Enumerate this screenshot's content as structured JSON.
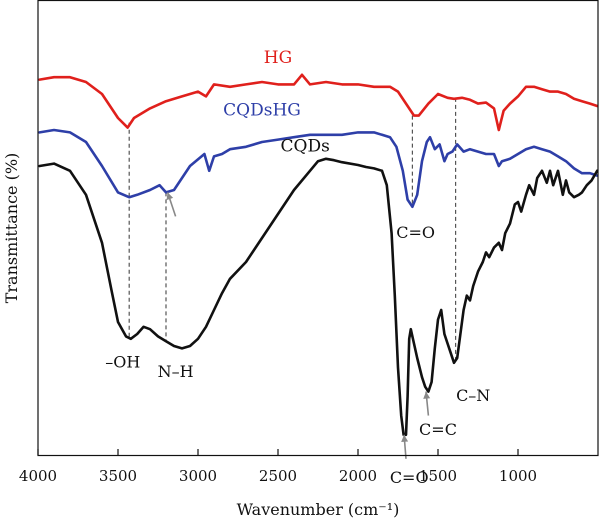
{
  "chart_data": {
    "type": "line",
    "xlabel": "Wavenumber (cm⁻¹)",
    "ylabel": "Transmittance (%)",
    "xlim": [
      4000,
      500
    ],
    "x_reversed": true,
    "y_ticks_shown": false,
    "grid": false,
    "x_ticks": [
      4000,
      3500,
      3000,
      2500,
      2000,
      1500,
      1000
    ],
    "series": [
      {
        "name": "HG",
        "color": "#e0201c",
        "points": [
          [
            3990,
            0.78
          ],
          [
            3900,
            0.785
          ],
          [
            3800,
            0.785
          ],
          [
            3700,
            0.775
          ],
          [
            3600,
            0.75
          ],
          [
            3500,
            0.7
          ],
          [
            3440,
            0.68
          ],
          [
            3400,
            0.7
          ],
          [
            3300,
            0.72
          ],
          [
            3200,
            0.735
          ],
          [
            3100,
            0.745
          ],
          [
            3000,
            0.755
          ],
          [
            2950,
            0.745
          ],
          [
            2900,
            0.77
          ],
          [
            2800,
            0.765
          ],
          [
            2700,
            0.77
          ],
          [
            2600,
            0.775
          ],
          [
            2500,
            0.77
          ],
          [
            2400,
            0.77
          ],
          [
            2350,
            0.79
          ],
          [
            2300,
            0.77
          ],
          [
            2200,
            0.775
          ],
          [
            2100,
            0.77
          ],
          [
            2000,
            0.77
          ],
          [
            1900,
            0.765
          ],
          [
            1800,
            0.765
          ],
          [
            1750,
            0.755
          ],
          [
            1700,
            0.73
          ],
          [
            1650,
            0.705
          ],
          [
            1620,
            0.705
          ],
          [
            1560,
            0.73
          ],
          [
            1500,
            0.75
          ],
          [
            1440,
            0.742
          ],
          [
            1400,
            0.74
          ],
          [
            1350,
            0.742
          ],
          [
            1300,
            0.738
          ],
          [
            1250,
            0.73
          ],
          [
            1200,
            0.732
          ],
          [
            1150,
            0.72
          ],
          [
            1120,
            0.675
          ],
          [
            1090,
            0.715
          ],
          [
            1050,
            0.73
          ],
          [
            1000,
            0.745
          ],
          [
            950,
            0.765
          ],
          [
            900,
            0.765
          ],
          [
            850,
            0.76
          ],
          [
            800,
            0.755
          ],
          [
            750,
            0.755
          ],
          [
            700,
            0.75
          ],
          [
            650,
            0.74
          ],
          [
            600,
            0.735
          ],
          [
            550,
            0.73
          ],
          [
            505,
            0.725
          ]
        ]
      },
      {
        "name": "CQDsHG",
        "color": "#2e3fa8",
        "points": [
          [
            3990,
            0.67
          ],
          [
            3900,
            0.675
          ],
          [
            3800,
            0.67
          ],
          [
            3700,
            0.65
          ],
          [
            3600,
            0.6
          ],
          [
            3500,
            0.545
          ],
          [
            3430,
            0.535
          ],
          [
            3380,
            0.54
          ],
          [
            3300,
            0.55
          ],
          [
            3240,
            0.56
          ],
          [
            3200,
            0.545
          ],
          [
            3150,
            0.55
          ],
          [
            3050,
            0.6
          ],
          [
            2960,
            0.625
          ],
          [
            2930,
            0.59
          ],
          [
            2900,
            0.62
          ],
          [
            2850,
            0.625
          ],
          [
            2800,
            0.635
          ],
          [
            2700,
            0.64
          ],
          [
            2600,
            0.65
          ],
          [
            2500,
            0.655
          ],
          [
            2400,
            0.66
          ],
          [
            2300,
            0.665
          ],
          [
            2200,
            0.665
          ],
          [
            2100,
            0.665
          ],
          [
            2000,
            0.67
          ],
          [
            1900,
            0.67
          ],
          [
            1850,
            0.665
          ],
          [
            1800,
            0.66
          ],
          [
            1760,
            0.64
          ],
          [
            1720,
            0.59
          ],
          [
            1690,
            0.53
          ],
          [
            1660,
            0.515
          ],
          [
            1630,
            0.54
          ],
          [
            1600,
            0.61
          ],
          [
            1570,
            0.65
          ],
          [
            1550,
            0.66
          ],
          [
            1520,
            0.635
          ],
          [
            1490,
            0.645
          ],
          [
            1460,
            0.61
          ],
          [
            1440,
            0.625
          ],
          [
            1410,
            0.63
          ],
          [
            1380,
            0.645
          ],
          [
            1340,
            0.63
          ],
          [
            1300,
            0.635
          ],
          [
            1250,
            0.63
          ],
          [
            1200,
            0.625
          ],
          [
            1150,
            0.625
          ],
          [
            1120,
            0.6
          ],
          [
            1100,
            0.61
          ],
          [
            1050,
            0.615
          ],
          [
            1000,
            0.625
          ],
          [
            950,
            0.635
          ],
          [
            900,
            0.64
          ],
          [
            850,
            0.635
          ],
          [
            800,
            0.63
          ],
          [
            750,
            0.62
          ],
          [
            700,
            0.61
          ],
          [
            650,
            0.595
          ],
          [
            600,
            0.585
          ],
          [
            550,
            0.585
          ],
          [
            505,
            0.58
          ]
        ]
      },
      {
        "name": "CQDs",
        "color": "#111111",
        "points": [
          [
            3990,
            0.6
          ],
          [
            3900,
            0.605
          ],
          [
            3800,
            0.59
          ],
          [
            3700,
            0.54
          ],
          [
            3600,
            0.44
          ],
          [
            3540,
            0.34
          ],
          [
            3500,
            0.275
          ],
          [
            3450,
            0.245
          ],
          [
            3420,
            0.24
          ],
          [
            3380,
            0.25
          ],
          [
            3340,
            0.265
          ],
          [
            3300,
            0.26
          ],
          [
            3250,
            0.245
          ],
          [
            3200,
            0.235
          ],
          [
            3150,
            0.225
          ],
          [
            3100,
            0.22
          ],
          [
            3050,
            0.225
          ],
          [
            3000,
            0.24
          ],
          [
            2950,
            0.265
          ],
          [
            2900,
            0.3
          ],
          [
            2850,
            0.335
          ],
          [
            2800,
            0.365
          ],
          [
            2700,
            0.4
          ],
          [
            2600,
            0.45
          ],
          [
            2500,
            0.5
          ],
          [
            2400,
            0.55
          ],
          [
            2300,
            0.59
          ],
          [
            2250,
            0.61
          ],
          [
            2200,
            0.615
          ],
          [
            2150,
            0.612
          ],
          [
            2100,
            0.608
          ],
          [
            2000,
            0.602
          ],
          [
            1950,
            0.598
          ],
          [
            1900,
            0.595
          ],
          [
            1850,
            0.59
          ],
          [
            1820,
            0.56
          ],
          [
            1790,
            0.46
          ],
          [
            1770,
            0.33
          ],
          [
            1750,
            0.18
          ],
          [
            1730,
            0.08
          ],
          [
            1715,
            0.04
          ],
          [
            1700,
            0.04
          ],
          [
            1690,
            0.12
          ],
          [
            1680,
            0.24
          ],
          [
            1670,
            0.26
          ],
          [
            1650,
            0.23
          ],
          [
            1630,
            0.2
          ],
          [
            1600,
            0.16
          ],
          [
            1580,
            0.14
          ],
          [
            1560,
            0.13
          ],
          [
            1540,
            0.15
          ],
          [
            1520,
            0.22
          ],
          [
            1500,
            0.28
          ],
          [
            1480,
            0.3
          ],
          [
            1460,
            0.25
          ],
          [
            1440,
            0.23
          ],
          [
            1420,
            0.21
          ],
          [
            1400,
            0.19
          ],
          [
            1380,
            0.2
          ],
          [
            1360,
            0.25
          ],
          [
            1340,
            0.3
          ],
          [
            1320,
            0.33
          ],
          [
            1300,
            0.32
          ],
          [
            1280,
            0.35
          ],
          [
            1250,
            0.38
          ],
          [
            1220,
            0.4
          ],
          [
            1200,
            0.42
          ],
          [
            1180,
            0.41
          ],
          [
            1150,
            0.43
          ],
          [
            1120,
            0.44
          ],
          [
            1100,
            0.425
          ],
          [
            1080,
            0.46
          ],
          [
            1050,
            0.48
          ],
          [
            1020,
            0.52
          ],
          [
            1000,
            0.525
          ],
          [
            980,
            0.505
          ],
          [
            950,
            0.54
          ],
          [
            930,
            0.56
          ],
          [
            900,
            0.54
          ],
          [
            880,
            0.575
          ],
          [
            850,
            0.59
          ],
          [
            820,
            0.565
          ],
          [
            800,
            0.59
          ],
          [
            780,
            0.56
          ],
          [
            750,
            0.59
          ],
          [
            720,
            0.54
          ],
          [
            700,
            0.57
          ],
          [
            680,
            0.545
          ],
          [
            650,
            0.535
          ],
          [
            620,
            0.54
          ],
          [
            600,
            0.545
          ],
          [
            570,
            0.56
          ],
          [
            540,
            0.57
          ],
          [
            505,
            0.59
          ]
        ]
      }
    ],
    "series_labels": [
      {
        "text": "HG",
        "x": 2500,
        "y": 0.815,
        "color": "#e0201c"
      },
      {
        "text": "CQDsHG",
        "x": 2600,
        "y": 0.705,
        "color": "#2e3fa8"
      },
      {
        "text": "CQDs",
        "x": 2330,
        "y": 0.63,
        "color": "#111111"
      }
    ],
    "guide_lines": [
      {
        "x": 3430,
        "y_top": 0.69,
        "y_bottom": 0.24
      },
      {
        "x": 3200,
        "y_top": 0.545,
        "y_bottom": 0.235
      },
      {
        "x": 1660,
        "y_top": 0.705,
        "y_bottom": 0.515
      },
      {
        "x": 1390,
        "y_top": 0.742,
        "y_bottom": 0.195
      }
    ],
    "annotations": [
      {
        "text": "–OH",
        "x": 3470,
        "y": 0.18
      },
      {
        "text": "N–H",
        "x": 3140,
        "y": 0.16
      },
      {
        "text": "C=O",
        "x": 1640,
        "y": 0.45
      },
      {
        "text": "C–N",
        "x": 1280,
        "y": 0.11
      },
      {
        "text": "C=C",
        "x": 1500,
        "y": 0.04
      },
      {
        "text": "C=O",
        "x": 1680,
        "y": -0.06
      }
    ],
    "arrows": [
      {
        "x1": 3140,
        "y1": 0.495,
        "x2": 3190,
        "y2": 0.545
      },
      {
        "x1": 1560,
        "y1": 0.08,
        "x2": 1575,
        "y2": 0.13
      },
      {
        "x1": 1700,
        "y1": -0.01,
        "x2": 1712,
        "y2": 0.04
      }
    ]
  }
}
